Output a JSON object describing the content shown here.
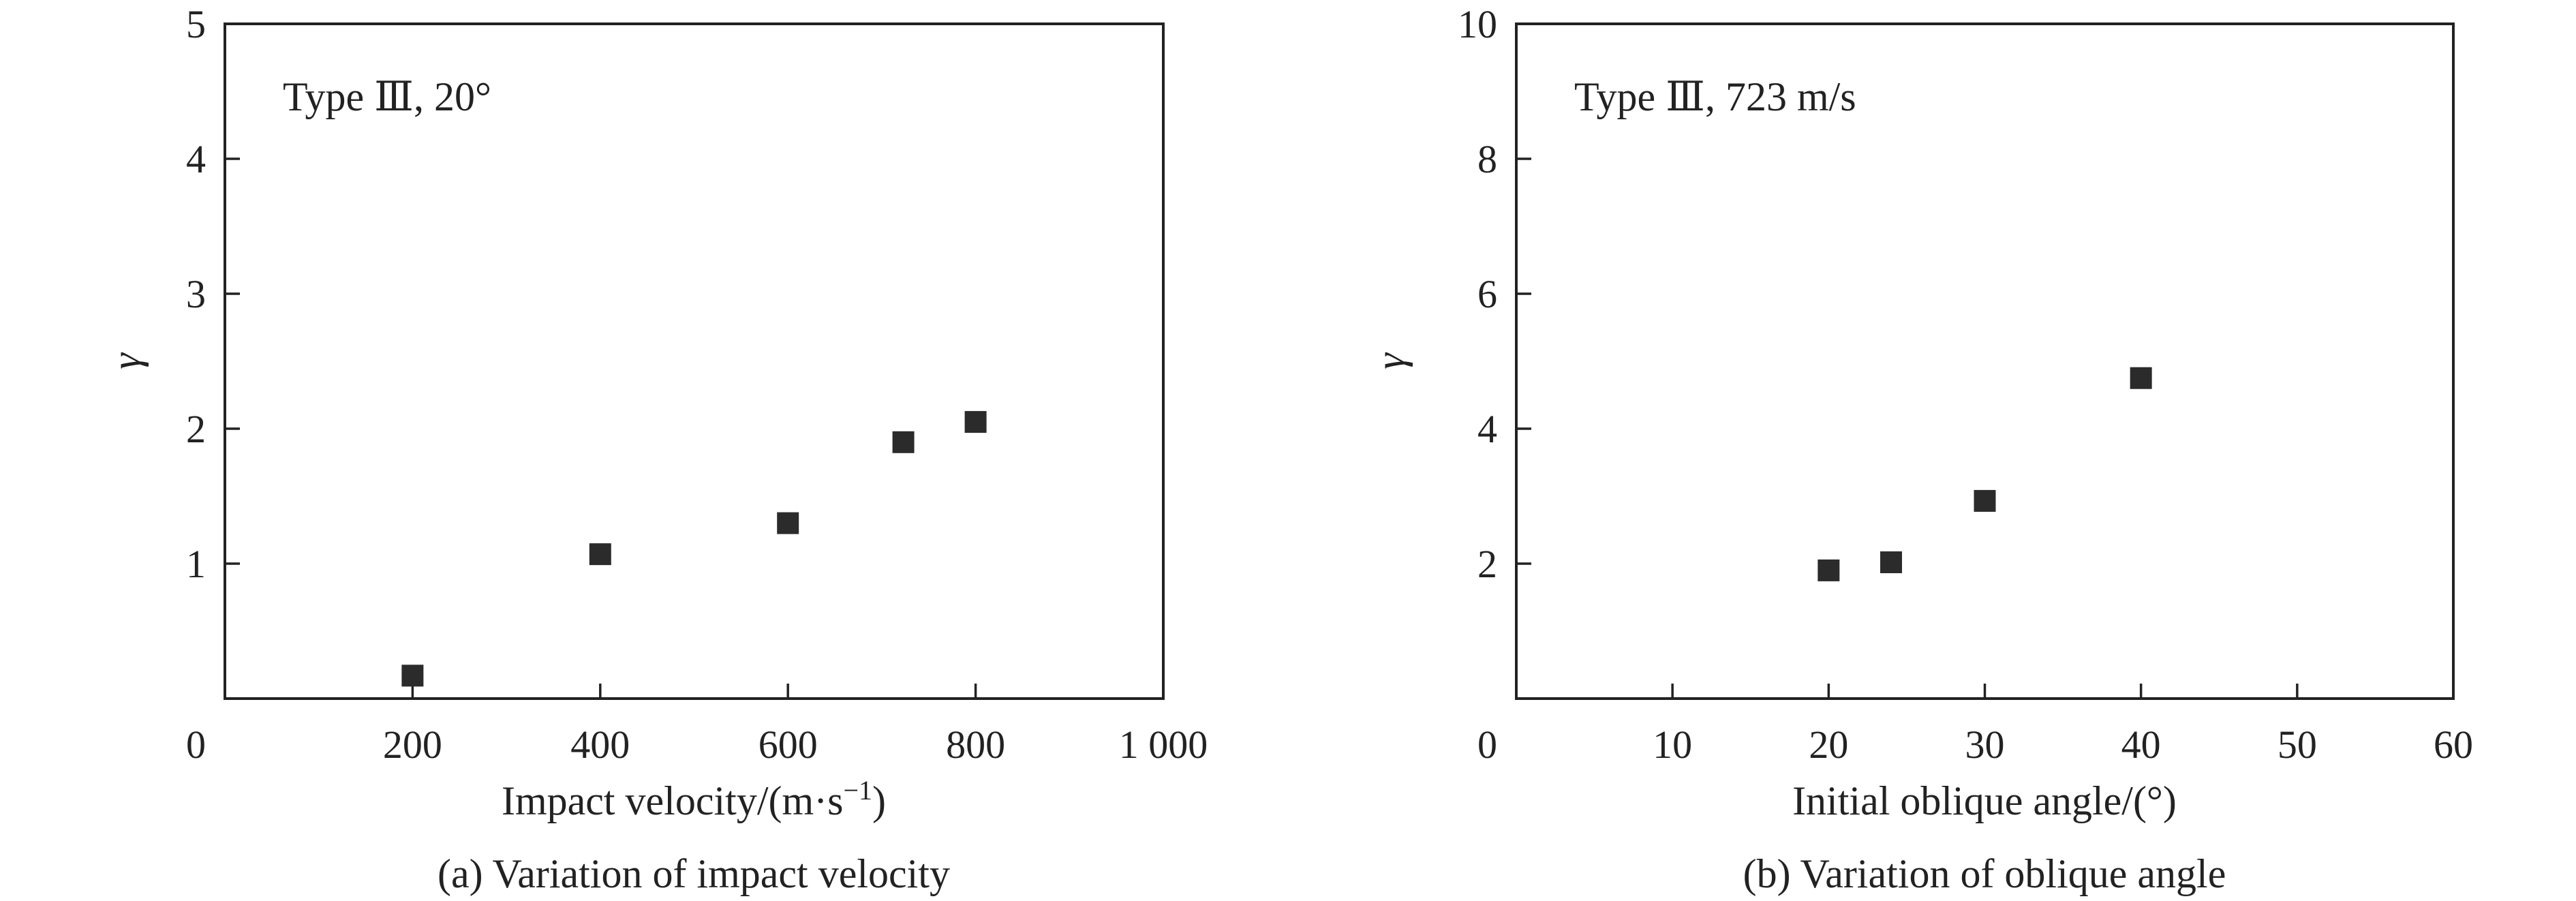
{
  "chart_data": [
    {
      "type": "scatter",
      "annotation": "Type Ⅲ, 20°",
      "xlabel": "Impact velocity/(m·s",
      "xlabel_sup": "−1",
      "xlabel_end": ")",
      "ylabel": "γ",
      "caption": "(a) Variation of impact velocity",
      "xlim": [
        0,
        1000
      ],
      "ylim": [
        0,
        5
      ],
      "xticks": [
        0,
        200,
        400,
        600,
        800,
        1000
      ],
      "xtick_labels": [
        "0",
        "200",
        "400",
        "600",
        "800",
        "1 000"
      ],
      "yticks": [
        1,
        2,
        3,
        4,
        5
      ],
      "ytick_labels": [
        "1",
        "2",
        "3",
        "4",
        "5"
      ],
      "points": [
        {
          "x": 200,
          "y": 0.17
        },
        {
          "x": 400,
          "y": 1.07
        },
        {
          "x": 600,
          "y": 1.3
        },
        {
          "x": 723,
          "y": 1.9
        },
        {
          "x": 800,
          "y": 2.05
        }
      ]
    },
    {
      "type": "scatter",
      "annotation": "Type Ⅲ, 723 m/s",
      "xlabel": "Initial oblique angle/(°)",
      "xlabel_sup": "",
      "xlabel_end": "",
      "ylabel": "γ",
      "caption": "(b) Variation of oblique angle",
      "xlim": [
        0,
        60
      ],
      "ylim": [
        0,
        10
      ],
      "xticks": [
        0,
        10,
        20,
        30,
        40,
        50,
        60
      ],
      "xtick_labels": [
        "0",
        "10",
        "20",
        "30",
        "40",
        "50",
        "60"
      ],
      "yticks": [
        2,
        4,
        6,
        8,
        10
      ],
      "ytick_labels": [
        "2",
        "4",
        "6",
        "8",
        "10"
      ],
      "points": [
        {
          "x": 20,
          "y": 1.9
        },
        {
          "x": 24,
          "y": 2.02
        },
        {
          "x": 30,
          "y": 2.93
        },
        {
          "x": 40,
          "y": 4.75
        }
      ]
    }
  ]
}
